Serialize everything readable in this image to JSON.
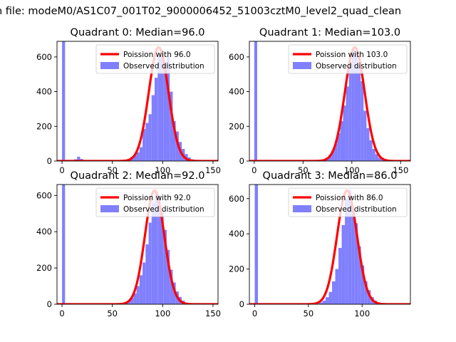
{
  "figure": {
    "suptitle": "n file: modeM0/AS1C07_001T02_9000006452_51003cztM0_level2_quad_clean"
  },
  "chart_data": [
    {
      "type": "bar",
      "title": "Quadrant 0: Median=96.0",
      "median": 96.0,
      "xlim": [
        -5,
        155
      ],
      "ylim": [
        0,
        690
      ],
      "xticks": [
        0,
        50,
        100,
        150
      ],
      "yticks": [
        0,
        200,
        400,
        600
      ],
      "bins": [
        {
          "x": 0,
          "width": 3,
          "count": 690
        },
        {
          "x": 12,
          "width": 3,
          "count": 10
        },
        {
          "x": 15,
          "width": 3,
          "count": 25
        },
        {
          "x": 18,
          "width": 3,
          "count": 12
        },
        {
          "x": 65,
          "width": 3,
          "count": 10
        },
        {
          "x": 68,
          "width": 3,
          "count": 25
        },
        {
          "x": 71,
          "width": 3,
          "count": 35
        },
        {
          "x": 74,
          "width": 3,
          "count": 50
        },
        {
          "x": 77,
          "width": 3,
          "count": 80
        },
        {
          "x": 80,
          "width": 3,
          "count": 185
        },
        {
          "x": 83,
          "width": 3,
          "count": 220
        },
        {
          "x": 86,
          "width": 3,
          "count": 270
        },
        {
          "x": 89,
          "width": 3,
          "count": 380
        },
        {
          "x": 92,
          "width": 3,
          "count": 480
        },
        {
          "x": 95,
          "width": 3,
          "count": 600
        },
        {
          "x": 98,
          "width": 3,
          "count": 640
        },
        {
          "x": 101,
          "width": 3,
          "count": 560
        },
        {
          "x": 104,
          "width": 3,
          "count": 600
        },
        {
          "x": 107,
          "width": 3,
          "count": 400
        },
        {
          "x": 110,
          "width": 3,
          "count": 230
        },
        {
          "x": 113,
          "width": 3,
          "count": 170
        },
        {
          "x": 116,
          "width": 3,
          "count": 110
        },
        {
          "x": 119,
          "width": 3,
          "count": 70
        },
        {
          "x": 122,
          "width": 3,
          "count": 40
        },
        {
          "x": 125,
          "width": 3,
          "count": 20
        },
        {
          "x": 128,
          "width": 3,
          "count": 10
        }
      ],
      "curve_color": "#ff0000",
      "bar_color": "#8080ff",
      "legend": {
        "loc": "upper right",
        "entries": [
          "Poission with 96.0",
          "Observed distribution"
        ]
      }
    },
    {
      "type": "bar",
      "title": "Quadrant 1: Median=103.0",
      "median": 103.0,
      "xlim": [
        -5,
        160
      ],
      "ylim": [
        0,
        690
      ],
      "xticks": [
        0,
        50,
        100,
        150
      ],
      "yticks": [
        0,
        200,
        400,
        600
      ],
      "bins": [
        {
          "x": 0,
          "width": 3,
          "count": 690
        },
        {
          "x": 70,
          "width": 3,
          "count": 10
        },
        {
          "x": 73,
          "width": 3,
          "count": 20
        },
        {
          "x": 76,
          "width": 3,
          "count": 35
        },
        {
          "x": 79,
          "width": 3,
          "count": 60
        },
        {
          "x": 82,
          "width": 3,
          "count": 100
        },
        {
          "x": 85,
          "width": 3,
          "count": 160
        },
        {
          "x": 88,
          "width": 3,
          "count": 230
        },
        {
          "x": 91,
          "width": 3,
          "count": 320
        },
        {
          "x": 94,
          "width": 3,
          "count": 430
        },
        {
          "x": 97,
          "width": 3,
          "count": 560
        },
        {
          "x": 100,
          "width": 3,
          "count": 640
        },
        {
          "x": 103,
          "width": 3,
          "count": 620
        },
        {
          "x": 106,
          "width": 3,
          "count": 550
        },
        {
          "x": 109,
          "width": 3,
          "count": 460
        },
        {
          "x": 112,
          "width": 3,
          "count": 290
        },
        {
          "x": 115,
          "width": 3,
          "count": 190
        },
        {
          "x": 118,
          "width": 3,
          "count": 120
        },
        {
          "x": 121,
          "width": 3,
          "count": 70
        },
        {
          "x": 124,
          "width": 3,
          "count": 40
        },
        {
          "x": 127,
          "width": 3,
          "count": 20
        },
        {
          "x": 130,
          "width": 3,
          "count": 10
        }
      ],
      "curve_color": "#ff0000",
      "bar_color": "#8080ff",
      "legend": {
        "loc": "upper right",
        "entries": [
          "Poission with 103.0",
          "Observed distribution"
        ]
      }
    },
    {
      "type": "bar",
      "title": "Quadrant 2: Median=92.0",
      "median": 92.0,
      "xlim": [
        -5,
        155
      ],
      "ylim": [
        0,
        660
      ],
      "xticks": [
        0,
        50,
        100,
        150
      ],
      "yticks": [
        0,
        200,
        400,
        600
      ],
      "bins": [
        {
          "x": 0,
          "width": 3,
          "count": 660
        },
        {
          "x": 62,
          "width": 3,
          "count": 10
        },
        {
          "x": 65,
          "width": 3,
          "count": 20
        },
        {
          "x": 68,
          "width": 3,
          "count": 35
        },
        {
          "x": 71,
          "width": 3,
          "count": 60
        },
        {
          "x": 74,
          "width": 3,
          "count": 100
        },
        {
          "x": 77,
          "width": 3,
          "count": 160
        },
        {
          "x": 80,
          "width": 3,
          "count": 230
        },
        {
          "x": 83,
          "width": 3,
          "count": 330
        },
        {
          "x": 86,
          "width": 3,
          "count": 450
        },
        {
          "x": 89,
          "width": 3,
          "count": 560
        },
        {
          "x": 92,
          "width": 3,
          "count": 620
        },
        {
          "x": 95,
          "width": 3,
          "count": 600
        },
        {
          "x": 98,
          "width": 3,
          "count": 520
        },
        {
          "x": 101,
          "width": 3,
          "count": 410
        },
        {
          "x": 104,
          "width": 3,
          "count": 300
        },
        {
          "x": 107,
          "width": 3,
          "count": 190
        },
        {
          "x": 110,
          "width": 3,
          "count": 120
        },
        {
          "x": 113,
          "width": 3,
          "count": 70
        },
        {
          "x": 116,
          "width": 3,
          "count": 40
        },
        {
          "x": 119,
          "width": 3,
          "count": 20
        },
        {
          "x": 122,
          "width": 3,
          "count": 10
        }
      ],
      "curve_color": "#ff0000",
      "bar_color": "#8080ff",
      "legend": {
        "loc": "upper right",
        "entries": [
          "Poission with 92.0",
          "Observed distribution"
        ]
      }
    },
    {
      "type": "bar",
      "title": "Quadrant 3: Median=86.0",
      "median": 86.0,
      "xlim": [
        -5,
        145
      ],
      "ylim": [
        0,
        680
      ],
      "xticks": [
        0,
        50,
        100
      ],
      "yticks": [
        0,
        200,
        400,
        600
      ],
      "bins": [
        {
          "x": 0,
          "width": 3,
          "count": 680
        },
        {
          "x": 60,
          "width": 3,
          "count": 10
        },
        {
          "x": 63,
          "width": 3,
          "count": 20
        },
        {
          "x": 66,
          "width": 3,
          "count": 40
        },
        {
          "x": 69,
          "width": 3,
          "count": 70
        },
        {
          "x": 72,
          "width": 3,
          "count": 130
        },
        {
          "x": 75,
          "width": 3,
          "count": 200
        },
        {
          "x": 78,
          "width": 3,
          "count": 320
        },
        {
          "x": 81,
          "width": 3,
          "count": 450
        },
        {
          "x": 84,
          "width": 3,
          "count": 600
        },
        {
          "x": 87,
          "width": 3,
          "count": 650
        },
        {
          "x": 90,
          "width": 3,
          "count": 540
        },
        {
          "x": 93,
          "width": 3,
          "count": 460
        },
        {
          "x": 96,
          "width": 3,
          "count": 330
        },
        {
          "x": 99,
          "width": 3,
          "count": 220
        },
        {
          "x": 102,
          "width": 3,
          "count": 130
        },
        {
          "x": 105,
          "width": 3,
          "count": 80
        },
        {
          "x": 108,
          "width": 3,
          "count": 40
        },
        {
          "x": 111,
          "width": 3,
          "count": 20
        },
        {
          "x": 114,
          "width": 3,
          "count": 10
        }
      ],
      "curve_color": "#ff0000",
      "bar_color": "#8080ff",
      "legend": {
        "loc": "upper right",
        "entries": [
          "Poission with 86.0",
          "Observed distribution"
        ]
      }
    }
  ]
}
